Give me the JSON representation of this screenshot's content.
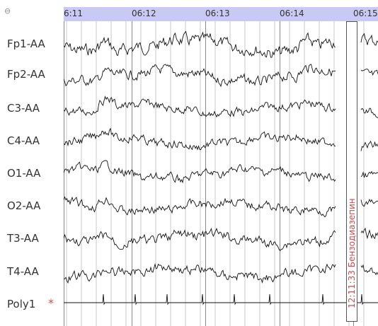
{
  "header": {
    "collapse_icon": "collapse-circle-icon",
    "time_labels": [
      "6:11",
      "06:12",
      "06:13",
      "06:14",
      "06:15"
    ]
  },
  "channels": [
    {
      "label": "Fp1-AA"
    },
    {
      "label": "Fp2-AA"
    },
    {
      "label": "C3-AA"
    },
    {
      "label": "C4-AA"
    },
    {
      "label": "O1-AA"
    },
    {
      "label": "O2-AA"
    },
    {
      "label": "T3-AA"
    },
    {
      "label": "T4-AA"
    },
    {
      "label": "Poly1",
      "marker": "*"
    }
  ],
  "event": {
    "time": "12:11:33",
    "label": "Бензодиазепин"
  },
  "colors": {
    "header_bg": "#c9c9f5",
    "trace": "#111111",
    "grid": "#bdbdbd",
    "event_text": "#c0504d",
    "marker": "#c0504d"
  }
}
